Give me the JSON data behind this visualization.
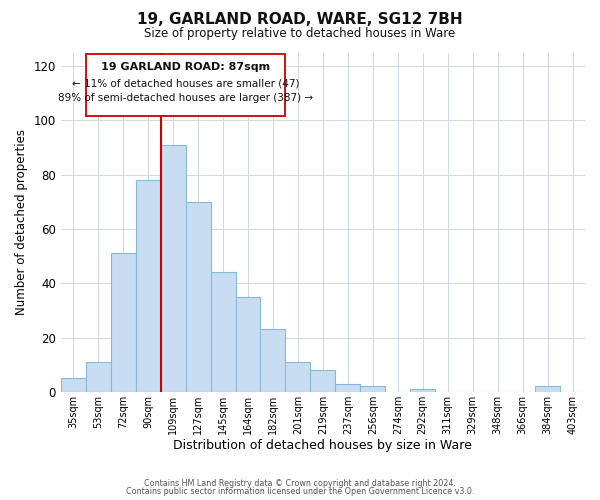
{
  "title": "19, GARLAND ROAD, WARE, SG12 7BH",
  "subtitle": "Size of property relative to detached houses in Ware",
  "xlabel": "Distribution of detached houses by size in Ware",
  "ylabel": "Number of detached properties",
  "bar_labels": [
    "35sqm",
    "53sqm",
    "72sqm",
    "90sqm",
    "109sqm",
    "127sqm",
    "145sqm",
    "164sqm",
    "182sqm",
    "201sqm",
    "219sqm",
    "237sqm",
    "256sqm",
    "274sqm",
    "292sqm",
    "311sqm",
    "329sqm",
    "348sqm",
    "366sqm",
    "384sqm",
    "403sqm"
  ],
  "bar_values": [
    5,
    11,
    51,
    78,
    91,
    70,
    44,
    35,
    23,
    11,
    8,
    3,
    2,
    0,
    1,
    0,
    0,
    0,
    0,
    2,
    0
  ],
  "bar_color": "#c9ddf2",
  "bar_edge_color": "#8ab8d8",
  "vline_x": 3.5,
  "vline_color": "#cc0000",
  "ylim": [
    0,
    125
  ],
  "yticks": [
    0,
    20,
    40,
    60,
    80,
    100,
    120
  ],
  "annotation_title": "19 GARLAND ROAD: 87sqm",
  "annotation_line1": "← 11% of detached houses are smaller (47)",
  "annotation_line2": "89% of semi-detached houses are larger (387) →",
  "footer1": "Contains HM Land Registry data © Crown copyright and database right 2024.",
  "footer2": "Contains public sector information licensed under the Open Government Licence v3.0."
}
